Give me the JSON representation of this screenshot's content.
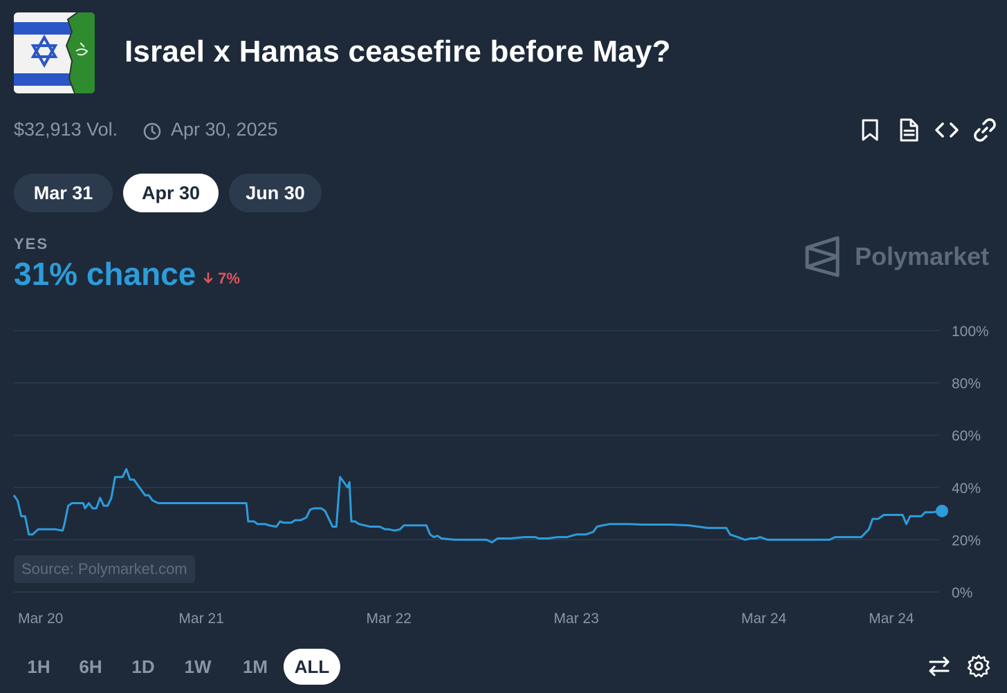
{
  "market": {
    "title": "Israel x Hamas ceasefire before May?",
    "volume": "$32,913 Vol.",
    "end_date": "Apr 30, 2025",
    "icon": "israel-hamas-flags-image"
  },
  "toolbar": {
    "icons": [
      "bookmark-icon",
      "document-icon",
      "code-icon",
      "link-icon"
    ]
  },
  "date_tabs": [
    {
      "label": "Mar 31",
      "active": false
    },
    {
      "label": "Apr 30",
      "active": true
    },
    {
      "label": "Jun 30",
      "active": false
    }
  ],
  "outcome": {
    "label": "YES",
    "chance": "31% chance",
    "change": "7%",
    "change_direction": "down"
  },
  "brand": {
    "name": "Polymarket"
  },
  "source": "Source: Polymarket.com",
  "range_buttons": [
    {
      "label": "1H",
      "active": false
    },
    {
      "label": "6H",
      "active": false
    },
    {
      "label": "1D",
      "active": false
    },
    {
      "label": "1W",
      "active": false
    },
    {
      "label": "1M",
      "active": false
    },
    {
      "label": "ALL",
      "active": true
    }
  ],
  "bottom_icons": [
    "swap-icon",
    "settings-icon"
  ],
  "colors": {
    "background": "#1e2a39",
    "line": "#2d9cdb",
    "negative": "#e0555f",
    "grid": "#2e4259",
    "muted": "#8a96a6"
  },
  "chart_data": {
    "type": "line",
    "title": "",
    "xlabel": "",
    "ylabel": "",
    "ylim": [
      0,
      100
    ],
    "y_ticks": [
      "100%",
      "80%",
      "60%",
      "40%",
      "20%",
      "0%"
    ],
    "x_ticks": [
      "Mar 20",
      "Mar 21",
      "Mar 22",
      "Mar 23",
      "Mar 24",
      "Mar 24"
    ],
    "x_tick_positions": [
      0,
      1,
      2,
      3,
      4,
      4.68
    ],
    "xlim": [
      0,
      4.95
    ],
    "grid": true,
    "series": [
      {
        "values": [
          [
            0.0,
            37
          ],
          [
            0.02,
            35
          ],
          [
            0.04,
            29
          ],
          [
            0.06,
            29
          ],
          [
            0.08,
            22
          ],
          [
            0.1,
            22
          ],
          [
            0.13,
            24
          ],
          [
            0.18,
            24
          ],
          [
            0.22,
            24
          ],
          [
            0.26,
            23.5
          ],
          [
            0.27,
            26
          ],
          [
            0.29,
            33
          ],
          [
            0.31,
            34
          ],
          [
            0.34,
            34
          ],
          [
            0.37,
            34
          ],
          [
            0.38,
            32
          ],
          [
            0.4,
            34
          ],
          [
            0.42,
            32
          ],
          [
            0.44,
            32
          ],
          [
            0.46,
            36
          ],
          [
            0.48,
            33
          ],
          [
            0.5,
            33
          ],
          [
            0.52,
            36
          ],
          [
            0.54,
            44
          ],
          [
            0.56,
            44
          ],
          [
            0.58,
            44
          ],
          [
            0.6,
            47
          ],
          [
            0.62,
            43
          ],
          [
            0.64,
            43
          ],
          [
            0.66,
            41
          ],
          [
            0.68,
            39
          ],
          [
            0.7,
            37
          ],
          [
            0.72,
            37
          ],
          [
            0.74,
            35
          ],
          [
            0.77,
            34
          ],
          [
            0.8,
            34
          ],
          [
            1.0,
            34
          ],
          [
            1.24,
            34
          ],
          [
            1.25,
            27
          ],
          [
            1.28,
            27
          ],
          [
            1.3,
            26
          ],
          [
            1.34,
            26
          ],
          [
            1.36,
            25.5
          ],
          [
            1.4,
            25
          ],
          [
            1.42,
            27
          ],
          [
            1.44,
            26.5
          ],
          [
            1.48,
            26.5
          ],
          [
            1.5,
            27.5
          ],
          [
            1.53,
            27.5
          ],
          [
            1.56,
            28.5
          ],
          [
            1.58,
            31.5
          ],
          [
            1.6,
            32
          ],
          [
            1.64,
            32
          ],
          [
            1.66,
            31
          ],
          [
            1.68,
            28
          ],
          [
            1.7,
            25
          ],
          [
            1.72,
            25
          ],
          [
            1.74,
            44
          ],
          [
            1.76,
            42
          ],
          [
            1.78,
            40
          ],
          [
            1.79,
            42
          ],
          [
            1.8,
            27
          ],
          [
            1.82,
            27
          ],
          [
            1.84,
            26
          ],
          [
            1.87,
            25.5
          ],
          [
            1.9,
            25
          ],
          [
            1.95,
            25
          ],
          [
            1.98,
            24
          ],
          [
            2.0,
            24
          ],
          [
            2.03,
            23.5
          ],
          [
            2.06,
            24
          ],
          [
            2.08,
            25.5
          ],
          [
            2.11,
            25.5
          ],
          [
            2.2,
            25.5
          ],
          [
            2.22,
            22
          ],
          [
            2.24,
            21
          ],
          [
            2.26,
            21.5
          ],
          [
            2.28,
            20.5
          ],
          [
            2.35,
            20
          ],
          [
            2.45,
            20
          ],
          [
            2.52,
            20
          ],
          [
            2.55,
            19
          ],
          [
            2.58,
            20.5
          ],
          [
            2.65,
            20.5
          ],
          [
            2.72,
            21
          ],
          [
            2.78,
            21
          ],
          [
            2.8,
            20.5
          ],
          [
            2.85,
            20.5
          ],
          [
            2.9,
            21
          ],
          [
            2.95,
            21
          ],
          [
            3.0,
            22
          ],
          [
            3.05,
            22
          ],
          [
            3.09,
            23
          ],
          [
            3.11,
            25
          ],
          [
            3.14,
            25.5
          ],
          [
            3.18,
            26
          ],
          [
            3.22,
            26
          ],
          [
            3.28,
            26
          ],
          [
            3.35,
            25.8
          ],
          [
            3.5,
            25.8
          ],
          [
            3.6,
            25.5
          ],
          [
            3.7,
            24.5
          ],
          [
            3.8,
            24.5
          ],
          [
            3.82,
            22
          ],
          [
            3.86,
            21
          ],
          [
            3.9,
            20
          ],
          [
            3.93,
            20.5
          ],
          [
            3.96,
            20.5
          ],
          [
            3.98,
            21
          ],
          [
            4.0,
            20.5
          ],
          [
            4.02,
            20
          ],
          [
            4.1,
            20
          ],
          [
            4.2,
            20
          ],
          [
            4.3,
            20
          ],
          [
            4.35,
            20
          ],
          [
            4.38,
            21
          ],
          [
            4.45,
            21
          ],
          [
            4.52,
            21
          ],
          [
            4.56,
            24
          ],
          [
            4.58,
            28
          ],
          [
            4.61,
            28
          ],
          [
            4.64,
            29.5
          ],
          [
            4.68,
            29.5
          ],
          [
            4.74,
            29.5
          ],
          [
            4.76,
            26
          ],
          [
            4.78,
            29
          ],
          [
            4.8,
            29
          ],
          [
            4.84,
            29
          ],
          [
            4.86,
            30.5
          ],
          [
            4.9,
            30.5
          ],
          [
            4.95,
            31
          ]
        ]
      }
    ]
  }
}
